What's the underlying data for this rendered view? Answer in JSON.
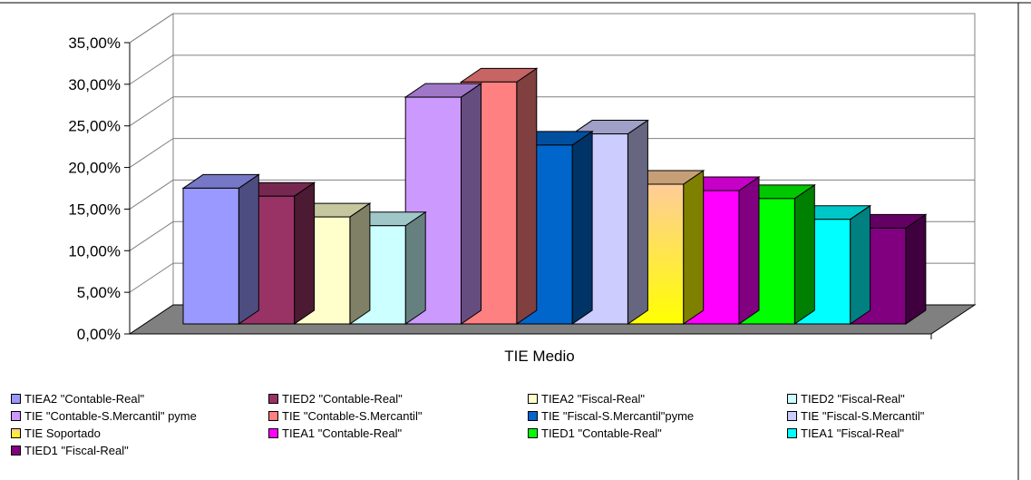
{
  "chart_data": {
    "type": "bar",
    "categories": [
      "TIE Medio"
    ],
    "ylim": [
      0,
      35
    ],
    "y_ticks": [
      "0,00%",
      "5,00%",
      "10,00%",
      "15,00%",
      "20,00%",
      "25,00%",
      "30,00%",
      "35,00%"
    ],
    "grid": true,
    "legend_position": "bottom",
    "series": [
      {
        "name": "TIEA2 \"Contable-Real\"",
        "values": [
          17.0
        ],
        "color": "#9999ff"
      },
      {
        "name": "TIED2 \"Contable-Real\"",
        "values": [
          16.0
        ],
        "color": "#993366"
      },
      {
        "name": "TIEA2 \"Fiscal-Real\"",
        "values": [
          13.4
        ],
        "color": "#ffffcc"
      },
      {
        "name": "TIED2 \"Fiscal-Real\"",
        "values": [
          12.3
        ],
        "color": "#ccffff"
      },
      {
        "name": "TIE \"Contable-S.Mercantil\" pyme",
        "values": [
          28.4
        ],
        "color": "#cc99ff"
      },
      {
        "name": "TIE \"Contable-S.Mercantil\"",
        "values": [
          30.3
        ],
        "color": "#ff8080"
      },
      {
        "name": "TIE \"Fiscal-S.Mercantil\"pyme",
        "values": [
          22.4
        ],
        "color": "#0066cc"
      },
      {
        "name": "TIE \"Fiscal-S.Mercantil\"",
        "values": [
          23.8
        ],
        "color": "#ccccff"
      },
      {
        "name": "TIE Soportado",
        "values": [
          17.5
        ],
        "color": "#ffff00",
        "gradient_top": "#ffcc99"
      },
      {
        "name": "TIEA1 \"Contable-Real\"",
        "values": [
          16.7
        ],
        "color": "#ff00ff"
      },
      {
        "name": "TIED1 \"Contable-Real\"",
        "values": [
          15.7
        ],
        "color": "#00ff00"
      },
      {
        "name": "TIEA1 \"Fiscal-Real\"",
        "values": [
          13.1
        ],
        "color": "#00ffff"
      },
      {
        "name": "TIED1 \"Fiscal-Real\"",
        "values": [
          12.0
        ],
        "color": "#800080"
      }
    ]
  }
}
